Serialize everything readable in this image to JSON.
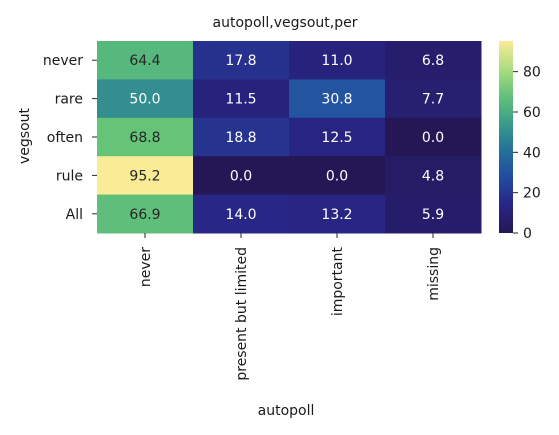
{
  "chart_data": {
    "type": "heatmap",
    "title": "autopoll,vegsout,per",
    "xlabel": "autopoll",
    "ylabel": "vegsout",
    "x_categories": [
      "never",
      "present but limited",
      "important",
      "missing"
    ],
    "y_categories": [
      "never",
      "rare",
      "often",
      "rule",
      "All"
    ],
    "values": [
      [
        64.4,
        17.8,
        11.0,
        6.8
      ],
      [
        50.0,
        11.5,
        30.8,
        7.7
      ],
      [
        68.8,
        18.8,
        12.5,
        0.0
      ],
      [
        95.2,
        0.0,
        0.0,
        4.8
      ],
      [
        66.9,
        14.0,
        13.2,
        5.9
      ]
    ],
    "value_labels": [
      [
        "64.4",
        "17.8",
        "11.0",
        "6.8"
      ],
      [
        "50.0",
        "11.5",
        "30.8",
        "7.7"
      ],
      [
        "68.8",
        "18.8",
        "12.5",
        "0.0"
      ],
      [
        "95.2",
        "0.0",
        "0.0",
        "4.8"
      ],
      [
        "66.9",
        "14.0",
        "13.2",
        "5.9"
      ]
    ],
    "colorscale": "YlGnBu_r",
    "vmin": 0,
    "vmax": 95.2,
    "colorbar_ticks": [
      0,
      20,
      40,
      60,
      80
    ],
    "colorbar_tick_labels": [
      "0",
      "20",
      "40",
      "60",
      "80"
    ]
  }
}
